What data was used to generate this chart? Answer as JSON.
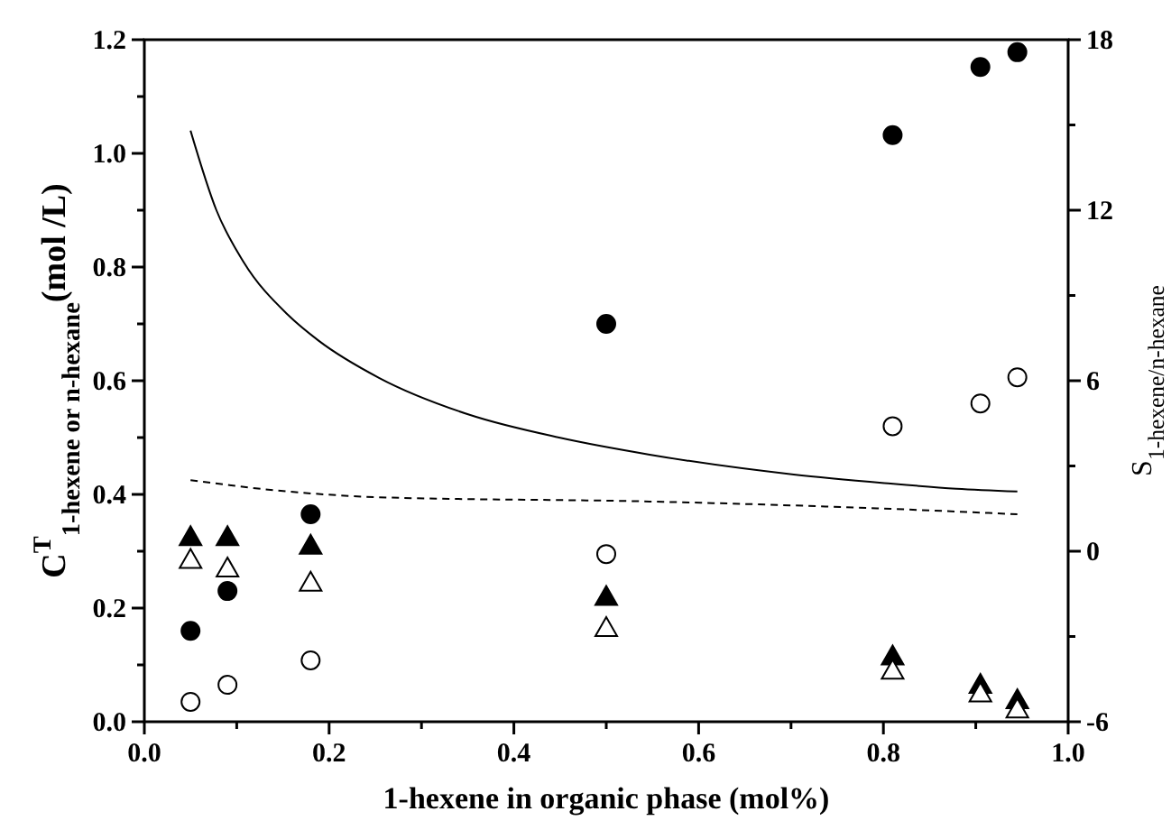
{
  "chart_data": {
    "type": "scatter",
    "xlabel": "1-hexene in organic phase (mol%)",
    "ylabel": "C$^{T}$$_{1-hexene or n-hexane}$(mol /L)",
    "y2label": "S$_{1-hexene/n-hexane}$",
    "xlim": [
      0,
      1
    ],
    "xticks": [
      {
        "value": 0,
        "label": "0.0"
      },
      {
        "value": 0.1,
        "label": null
      },
      {
        "value": 0.2,
        "label": "0.2"
      },
      {
        "value": 0.3,
        "label": null
      },
      {
        "value": 0.4,
        "label": "0.4"
      },
      {
        "value": 0.5,
        "label": null
      },
      {
        "value": 0.6,
        "label": "0.6"
      },
      {
        "value": 0.7,
        "label": null
      },
      {
        "value": 0.8,
        "label": "0.8"
      },
      {
        "value": 0.9,
        "label": null
      },
      {
        "value": 1,
        "label": "1.0"
      }
    ],
    "ylim": [
      0,
      1.2
    ],
    "yticks": [
      {
        "value": 0,
        "label": "0.0"
      },
      {
        "value": 0.1,
        "label": null
      },
      {
        "value": 0.2,
        "label": "0.2"
      },
      {
        "value": 0.3,
        "label": null
      },
      {
        "value": 0.4,
        "label": "0.4"
      },
      {
        "value": 0.5,
        "label": null
      },
      {
        "value": 0.6,
        "label": "0.6"
      },
      {
        "value": 0.7,
        "label": null
      },
      {
        "value": 0.8,
        "label": "0.8"
      },
      {
        "value": 0.9,
        "label": null
      },
      {
        "value": 1,
        "label": "1.0"
      },
      {
        "value": 1.1,
        "label": null
      },
      {
        "value": 1.2,
        "label": "1.2"
      }
    ],
    "y2lim": [
      -6,
      18
    ],
    "y2ticks": [
      -6,
      {
        "value": -3,
        "label": null
      },
      0,
      {
        "value": 3,
        "label": null
      },
      6,
      {
        "value": 9,
        "label": null
      },
      12,
      {
        "value": 15,
        "label": null
      },
      18
    ],
    "grid": false,
    "x": [
      0.05,
      0.09,
      0.18,
      0.5,
      0.81,
      0.905,
      0.945
    ],
    "series": [
      {
        "marker": "circle",
        "color": "#000000",
        "values": [
          0.16,
          0.23,
          0.365,
          0.7,
          1.032,
          1.152,
          1.178
        ]
      },
      {
        "marker": "circle",
        "color": "#ffffff",
        "values": [
          0.035,
          0.065,
          0.108,
          0.295,
          0.52,
          0.56,
          0.606
        ]
      },
      {
        "marker": "triangle",
        "color": "#000000",
        "values": [
          0.325,
          0.325,
          0.31,
          0.22,
          0.115,
          0.065,
          0.038
        ]
      },
      {
        "marker": "triangle",
        "color": "#ffffff",
        "values": [
          0.285,
          0.27,
          0.245,
          0.165,
          0.09,
          0.05,
          0.022
        ]
      },
      {
        "type": "line",
        "axis": "y2",
        "line_style": "solid",
        "marker": "none",
        "color": "#000000",
        "x": [
          0.05,
          0.078,
          0.107,
          0.156,
          0.189,
          0.254,
          0.352,
          0.449,
          0.547,
          0.703,
          0.801,
          0.879,
          0.945
        ],
        "values": [
          14.8,
          12.0,
          10.2,
          8.3,
          7.4,
          6.1,
          4.8,
          4.0,
          3.4,
          2.7,
          2.4,
          2.2,
          2.1
        ]
      },
      {
        "type": "line",
        "axis": "y2",
        "line_style": "dashed",
        "marker": "none",
        "color": "#000000",
        "x": [
          0.05,
          0.156,
          0.254,
          0.547,
          0.801,
          0.945
        ],
        "values": [
          2.5,
          2.1,
          1.9,
          1.75,
          1.5,
          1.3
        ]
      }
    ]
  }
}
